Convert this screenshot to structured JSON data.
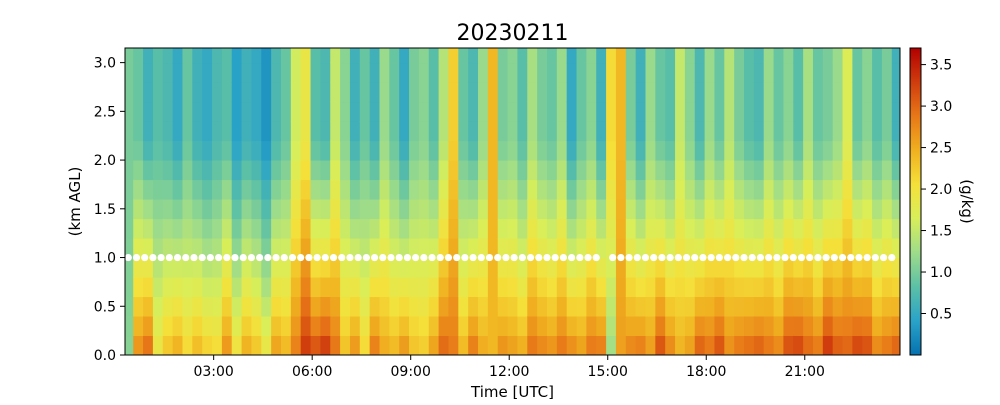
{
  "chart_data": {
    "type": "heatmap",
    "title": "20230211",
    "xlabel": "Time [UTC]",
    "ylabel": "(km AGL)",
    "colorbar_label": "(g/kg)",
    "x_range_hours": [
      0.3,
      23.9
    ],
    "ylim": [
      0.0,
      3.15
    ],
    "x_ticks": [
      {
        "hour": 3,
        "label": "03:00"
      },
      {
        "hour": 6,
        "label": "06:00"
      },
      {
        "hour": 9,
        "label": "09:00"
      },
      {
        "hour": 12,
        "label": "12:00"
      },
      {
        "hour": 15,
        "label": "15:00"
      },
      {
        "hour": 18,
        "label": "18:00"
      },
      {
        "hour": 21,
        "label": "21:00"
      }
    ],
    "y_ticks": [
      {
        "value": 0.0,
        "label": "0.0"
      },
      {
        "value": 0.5,
        "label": "0.5"
      },
      {
        "value": 1.0,
        "label": "1.0"
      },
      {
        "value": 1.5,
        "label": "1.5"
      },
      {
        "value": 2.0,
        "label": "2.0"
      },
      {
        "value": 2.5,
        "label": "2.5"
      },
      {
        "value": 3.0,
        "label": "3.0"
      }
    ],
    "colorbar": {
      "range": [
        0.0,
        3.7
      ],
      "ticks": [
        {
          "value": 0.5,
          "label": "0.5"
        },
        {
          "value": 1.0,
          "label": "1.0"
        },
        {
          "value": 1.5,
          "label": "1.5"
        },
        {
          "value": 2.0,
          "label": "2.0"
        },
        {
          "value": 2.5,
          "label": "2.5"
        },
        {
          "value": 3.0,
          "label": "3.0"
        },
        {
          "value": 3.5,
          "label": "3.5"
        }
      ],
      "colors": [
        "#0571b0",
        "#2aa3c8",
        "#5cc0a6",
        "#9edc8a",
        "#d8ee5a",
        "#f5e03a",
        "#f0b020",
        "#e87818",
        "#d03c0e",
        "#b20000"
      ]
    },
    "time_hours": [
      0.4,
      0.7,
      1.0,
      1.3,
      1.6,
      1.9,
      2.2,
      2.5,
      2.8,
      3.1,
      3.4,
      3.7,
      4.0,
      4.3,
      4.6,
      4.9,
      5.2,
      5.5,
      5.8,
      6.1,
      6.4,
      6.7,
      7.0,
      7.3,
      7.6,
      7.9,
      8.2,
      8.5,
      8.8,
      9.1,
      9.4,
      9.7,
      10.0,
      10.3,
      10.6,
      10.9,
      11.2,
      11.5,
      11.8,
      12.1,
      12.4,
      12.7,
      13.0,
      13.3,
      13.6,
      13.9,
      14.2,
      14.5,
      14.8,
      15.1,
      15.4,
      15.7,
      16.0,
      16.3,
      16.6,
      16.9,
      17.2,
      17.5,
      17.8,
      18.1,
      18.4,
      18.7,
      19.0,
      19.3,
      19.6,
      19.9,
      20.2,
      20.5,
      20.8,
      21.1,
      21.4,
      21.7,
      22.0,
      22.3,
      22.6,
      22.9,
      23.2,
      23.5,
      23.8
    ],
    "mixing_ratio_profiles": {
      "heights_km": [
        0.1,
        0.3,
        0.5,
        0.7,
        0.9,
        1.1,
        1.3,
        1.5,
        1.7,
        1.9,
        2.1,
        2.3,
        2.5,
        2.7,
        2.9,
        3.1
      ],
      "surface_gkg": [
        1.1,
        2.8,
        3.1,
        2.0,
        2.4,
        2.6,
        2.2,
        2.5,
        2.3,
        2.2,
        2.8,
        2.1,
        2.6,
        2.4,
        2.0,
        2.7,
        2.5,
        2.9,
        3.4,
        3.3,
        3.5,
        3.0,
        2.4,
        2.8,
        2.2,
        3.0,
        2.6,
        2.5,
        2.8,
        2.4,
        2.3,
        2.7,
        3.1,
        2.9,
        2.5,
        3.0,
        2.6,
        2.4,
        2.8,
        2.7,
        2.6,
        3.0,
        2.9,
        2.8,
        3.0,
        2.9,
        2.7,
        3.0,
        3.0,
        1.2,
        2.6,
        2.9,
        3.0,
        2.7,
        3.3,
        2.9,
        2.5,
        2.7,
        3.2,
        3.0,
        3.3,
        2.8,
        3.0,
        3.1,
        3.2,
        3.0,
        2.9,
        3.3,
        3.4,
        3.1,
        3.0,
        3.5,
        3.2,
        3.1,
        3.4,
        3.3,
        2.9,
        3.0,
        3.2
      ],
      "upper_gkg": [
        1.0,
        0.9,
        0.6,
        0.8,
        0.7,
        0.5,
        0.9,
        0.6,
        0.5,
        0.7,
        0.8,
        0.4,
        0.6,
        0.5,
        0.3,
        0.7,
        0.9,
        1.6,
        1.9,
        0.8,
        0.7,
        1.5,
        1.1,
        0.6,
        0.9,
        0.6,
        1.2,
        0.9,
        0.5,
        1.0,
        1.1,
        0.8,
        1.4,
        2.2,
        0.9,
        0.7,
        1.2,
        2.4,
        1.0,
        1.1,
        0.8,
        1.3,
        1.0,
        0.9,
        1.2,
        0.5,
        0.9,
        1.1,
        0.6,
        2.1,
        2.4,
        1.0,
        0.6,
        1.2,
        0.9,
        0.8,
        1.5,
        1.1,
        0.7,
        1.2,
        0.9,
        1.4,
        1.0,
        0.8,
        0.7,
        1.2,
        0.9,
        1.1,
        0.8,
        1.3,
        0.9,
        1.0,
        1.2,
        1.7,
        0.9,
        1.1,
        0.8,
        1.0,
        0.6
      ]
    },
    "blh_marker": {
      "height_km": 1.0,
      "color": "#ffffff",
      "gap_hours": [
        14.7,
        15.0
      ]
    }
  }
}
